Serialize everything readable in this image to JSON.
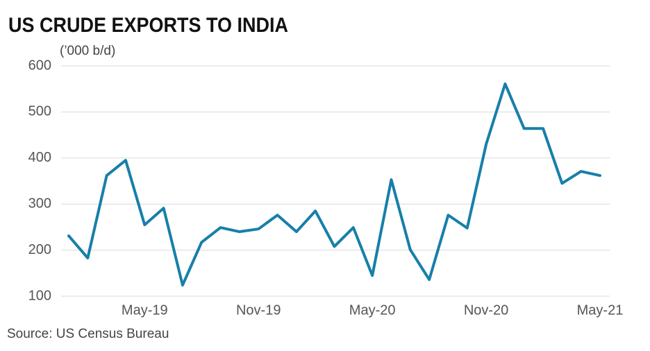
{
  "chart_data": {
    "type": "line",
    "title": "US CRUDE EXPORTS TO INDIA",
    "unit_label": "(’000 b/d)",
    "source": "Source: US Census Bureau",
    "categories": [
      null,
      null,
      null,
      null,
      "May-19",
      null,
      null,
      null,
      null,
      null,
      "Nov-19",
      null,
      null,
      null,
      null,
      null,
      "May-20",
      null,
      null,
      null,
      null,
      null,
      "Nov-20",
      null,
      null,
      null,
      null,
      null,
      "May-21"
    ],
    "series": [
      {
        "name": "US crude exports to India",
        "color": "#177fa9",
        "values": [
          231,
          183,
          362,
          395,
          255,
          291,
          124,
          217,
          249,
          240,
          246,
          276,
          240,
          285,
          208,
          249,
          145,
          353,
          201,
          136,
          276,
          248,
          430,
          561,
          464,
          464,
          345,
          371,
          362
        ]
      }
    ],
    "ylim": [
      100,
      600
    ],
    "yticks": [
      100,
      200,
      300,
      400,
      500,
      600
    ],
    "grid": true
  }
}
